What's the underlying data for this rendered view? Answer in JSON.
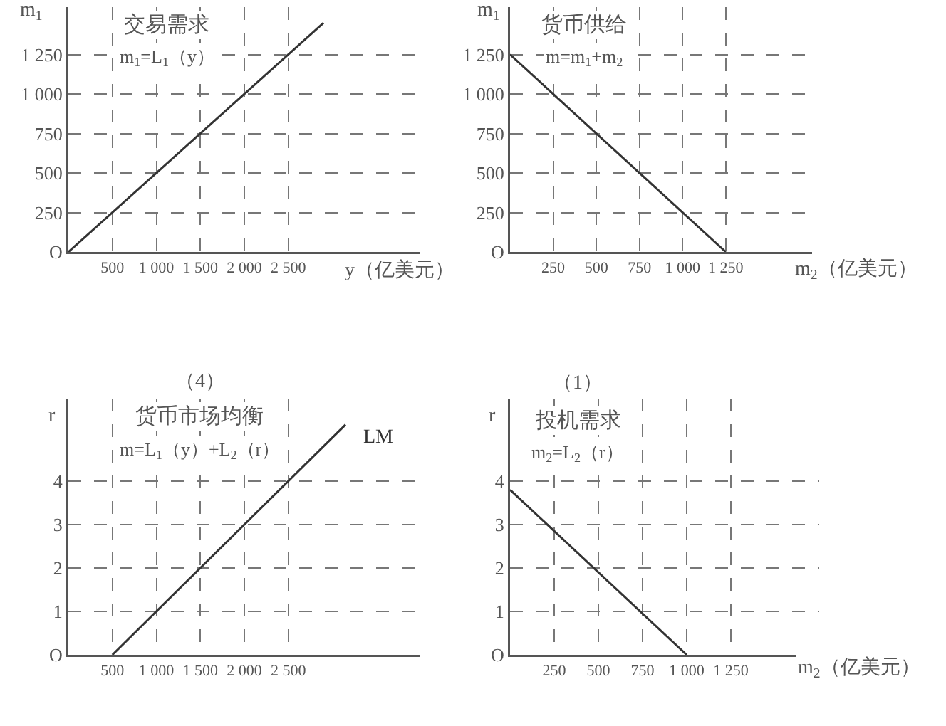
{
  "chart_data": [
    {
      "type": "line",
      "title": "交易需求",
      "subtitle": "m$_{1}$=L$_{1}$（y）",
      "xlabel": "y（亿美元）",
      "ylabel": "m$_{1}$",
      "x": [
        0,
        2900
      ],
      "values": [
        0,
        1450
      ],
      "color": "#333333",
      "line_style": "solid",
      "grid": true,
      "xlim": [
        0,
        4000
      ],
      "ylim": [
        0,
        1550
      ],
      "xticks": [
        500,
        {
          "value": 1000,
          "label": "1 000"
        },
        {
          "value": 1500,
          "label": "1 500"
        },
        {
          "value": 2000,
          "label": "2 000"
        },
        {
          "value": 2500,
          "label": "2 500"
        }
      ],
      "yticks": [
        {
          "value": 0,
          "label": "O"
        },
        250,
        500,
        750,
        {
          "value": 1000,
          "label": "1 000"
        },
        {
          "value": 1250,
          "label": "1 250"
        }
      ]
    },
    {
      "type": "line",
      "title": "货币供给",
      "subtitle": "m=m$_{1}$+m$_{2}$",
      "xlabel": "m$_{2}$（亿美元）",
      "ylabel": "m$_{1}$",
      "x": [
        0,
        1250
      ],
      "values": [
        1250,
        0
      ],
      "color": "#333333",
      "line_style": "solid",
      "grid": true,
      "xlim": [
        0,
        1750
      ],
      "ylim": [
        0,
        1550
      ],
      "xticks": [
        250,
        500,
        750,
        {
          "value": 1000,
          "label": "1 000"
        },
        {
          "value": 1250,
          "label": "1 250"
        }
      ],
      "yticks": [
        {
          "value": 0,
          "label": "O"
        },
        250,
        500,
        750,
        {
          "value": 1000,
          "label": "1 000"
        },
        {
          "value": 1250,
          "label": "1 250"
        }
      ]
    },
    {
      "type": "line",
      "title": "货币市场均衡",
      "subtitle": "m=L$_{1}$（y）+L$_{2}$（r）",
      "ylabel": "r",
      "x": [
        500,
        3150
      ],
      "values": [
        0,
        5.3
      ],
      "color": "#333333",
      "line_style": "solid",
      "grid": true,
      "xlim": [
        0,
        4000
      ],
      "ylim": [
        0,
        5.9
      ],
      "xticks": [
        500,
        {
          "value": 1000,
          "label": "1 000"
        },
        {
          "value": 1500,
          "label": "1 500"
        },
        {
          "value": 2000,
          "label": "2 000"
        },
        {
          "value": 2500,
          "label": "2 500"
        }
      ],
      "yticks": [
        {
          "value": 0,
          "label": "O"
        },
        1,
        2,
        3,
        4
      ],
      "annotations": [
        "（4）",
        {
          "text": "LM",
          "x": 3150,
          "y": 5.3
        }
      ]
    },
    {
      "type": "line",
      "title": "投机需求",
      "subtitle": "m$_{2}$=L$_{2}$（r）",
      "xlabel": "m$_{2}$（亿美元）",
      "ylabel": "r",
      "x": [
        0,
        1000
      ],
      "values": [
        3.8,
        0
      ],
      "color": "#333333",
      "line_style": "solid",
      "grid": true,
      "xlim": [
        0,
        1750
      ],
      "ylim": [
        0,
        5.9
      ],
      "xticks": [
        250,
        500,
        750,
        {
          "value": 1000,
          "label": "1 000"
        },
        {
          "value": 1250,
          "label": "1 250"
        }
      ],
      "yticks": [
        {
          "value": 0,
          "label": "O"
        },
        1,
        2,
        3,
        4
      ],
      "annotations": [
        "（1）"
      ]
    }
  ]
}
